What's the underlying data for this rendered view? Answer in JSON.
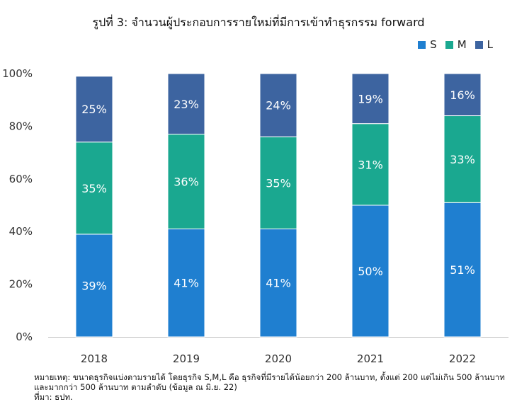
{
  "chart_data": {
    "type": "bar",
    "stacked": true,
    "title": "รูปที่ 3: จำนวนผู้ประกอบการรายใหม่ที่มีการเข้าทำธุรกรรม forward",
    "categories": [
      "2018",
      "2019",
      "2020",
      "2021",
      "2022"
    ],
    "series": [
      {
        "name": "S",
        "values": [
          39,
          41,
          41,
          50,
          51
        ],
        "labels": [
          "39%",
          "41%",
          "41%",
          "50%",
          "51%"
        ],
        "color": "#1f7fd0"
      },
      {
        "name": "M",
        "values": [
          35,
          36,
          35,
          31,
          33
        ],
        "labels": [
          "35%",
          "36%",
          "35%",
          "31%",
          "33%"
        ],
        "color": "#1aa890"
      },
      {
        "name": "L",
        "values": [
          25,
          23,
          24,
          19,
          16
        ],
        "labels": [
          "25%",
          "23%",
          "24%",
          "19%",
          "16%"
        ],
        "color": "#3d64a0"
      }
    ],
    "ylim": [
      0,
      100
    ],
    "yticks": [
      0,
      20,
      40,
      60,
      80,
      100
    ],
    "ytick_labels": [
      "0%",
      "20%",
      "40%",
      "60%",
      "80%",
      "100%"
    ],
    "grid": false,
    "legend": "top-right"
  },
  "footnote": {
    "line1": "หมายเหตุ: ขนาดธุรกิจแบ่งตามรายได้ โดยธุรกิจ S,M,L คือ ธุรกิจที่มีรายได้น้อยกว่า 200 ล้านบาท, ตั้งแต่ 200 แต่ไม่เกิน 500 ล้านบาท และมากกว่า 500 ล้านบาท ตามลำดับ (ข้อมูล ณ มิ.ย. 22)",
    "line2": "ที่มา: ธปท."
  }
}
